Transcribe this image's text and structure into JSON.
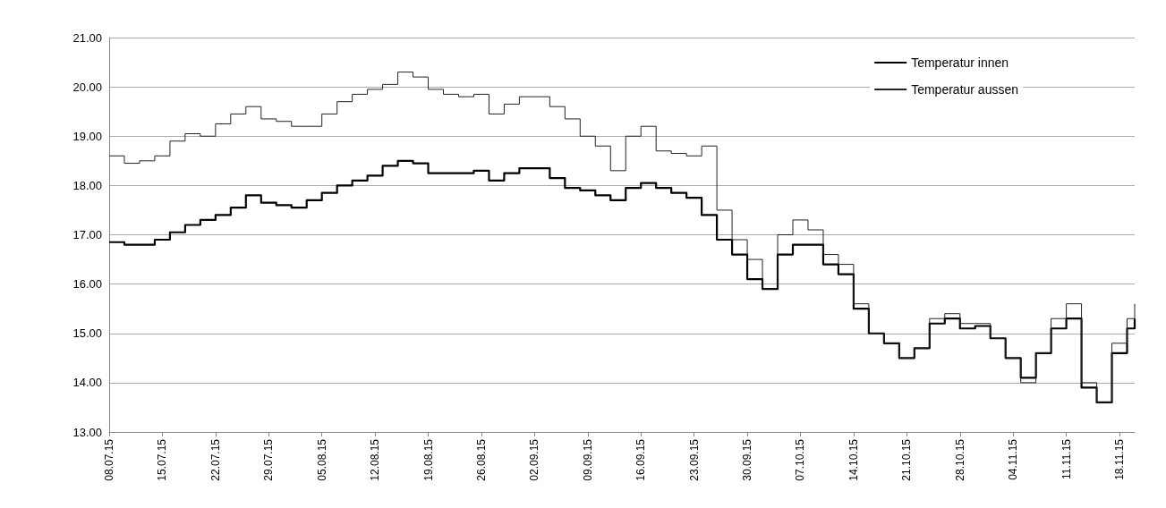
{
  "chart_data": {
    "type": "step",
    "x": [
      "--07-08",
      "--07-10",
      "--07-12",
      "--07-14",
      "--07-16",
      "--07-18",
      "--07-20",
      "--07-22",
      "--07-24",
      "--07-26",
      "--07-28",
      "--07-30",
      "--08-01",
      "--08-03",
      "--08-05",
      "--08-07",
      "--08-09",
      "--08-11",
      "--08-13",
      "--08-15",
      "--08-17",
      "--08-19",
      "--08-21",
      "--08-23",
      "--08-25",
      "--08-27",
      "--08-29",
      "--08-31",
      "--09-02",
      "--09-04",
      "--09-06",
      "--09-08",
      "--09-10",
      "--09-12",
      "--09-14",
      "--09-16",
      "--09-18",
      "--09-20",
      "--09-22",
      "--09-24",
      "--09-26",
      "--09-28",
      "--09-30",
      "--10-02",
      "--10-04",
      "--10-06",
      "--10-08",
      "--10-10",
      "--10-12",
      "--10-14",
      "--10-16",
      "--10-18",
      "--10-20",
      "--10-22",
      "--10-24",
      "--10-26",
      "--10-28",
      "--10-30",
      "--11-01",
      "--11-03",
      "--11-05",
      "--11-07",
      "--11-09",
      "--11-11",
      "--11-13",
      "--11-15",
      "--11-17",
      "--11-19",
      "--11-20"
    ],
    "series": [
      {
        "name": "Temperatur innen",
        "color": "#000000",
        "values": [
          16.85,
          16.8,
          16.8,
          16.9,
          17.05,
          17.2,
          17.3,
          17.4,
          17.55,
          17.8,
          17.65,
          17.6,
          17.55,
          17.7,
          17.85,
          18.0,
          18.1,
          18.2,
          18.4,
          18.5,
          18.45,
          18.25,
          18.25,
          18.25,
          18.3,
          18.1,
          18.25,
          18.35,
          18.35,
          18.15,
          17.95,
          17.9,
          17.8,
          17.7,
          17.95,
          18.05,
          17.95,
          17.85,
          17.75,
          17.4,
          16.9,
          16.6,
          16.1,
          15.9,
          16.6,
          16.8,
          16.8,
          16.4,
          16.2,
          15.5,
          15.0,
          14.8,
          14.5,
          14.7,
          15.2,
          15.3,
          15.1,
          15.15,
          14.9,
          14.5,
          14.1,
          14.6,
          15.1,
          15.3,
          13.9,
          13.6,
          14.6,
          15.1,
          15.3
        ]
      },
      {
        "name": "Temperatur aussen",
        "color": "#222222",
        "values": [
          18.6,
          18.45,
          18.5,
          18.6,
          18.9,
          19.05,
          19.0,
          19.25,
          19.45,
          19.6,
          19.35,
          19.3,
          19.2,
          19.2,
          19.45,
          19.7,
          19.85,
          19.95,
          20.05,
          20.3,
          20.2,
          19.95,
          19.85,
          19.8,
          19.85,
          19.45,
          19.65,
          19.8,
          19.8,
          19.6,
          19.35,
          19.0,
          18.8,
          18.3,
          19.0,
          19.2,
          18.7,
          18.65,
          18.6,
          18.8,
          17.5,
          16.9,
          16.5,
          15.9,
          17.0,
          17.3,
          17.1,
          16.6,
          16.4,
          15.6,
          15.0,
          14.8,
          14.5,
          14.7,
          15.3,
          15.4,
          15.2,
          15.2,
          14.9,
          14.5,
          14.0,
          14.6,
          15.3,
          15.6,
          14.0,
          13.6,
          14.8,
          15.3,
          15.6
        ]
      }
    ],
    "xlim": [
      "--07-08",
      "--11-20"
    ],
    "xticks": [
      {
        "value": "--07-08",
        "label": "08.07.15"
      },
      {
        "value": "--07-15",
        "label": "15.07.15"
      },
      {
        "value": "--07-22",
        "label": "22.07.15"
      },
      {
        "value": "--07-29",
        "label": "29.07.15"
      },
      {
        "value": "--08-05",
        "label": "05.08.15"
      },
      {
        "value": "--08-12",
        "label": "12.08.15"
      },
      {
        "value": "--08-19",
        "label": "19.08.15"
      },
      {
        "value": "--08-26",
        "label": "26.08.15"
      },
      {
        "value": "--09-02",
        "label": "02.09.15"
      },
      {
        "value": "--09-09",
        "label": "09.09.15"
      },
      {
        "value": "--09-16",
        "label": "16.09.15"
      },
      {
        "value": "--09-23",
        "label": "23.09.15"
      },
      {
        "value": "--09-30",
        "label": "30.09.15"
      },
      {
        "value": "--10-07",
        "label": "07.10.15"
      },
      {
        "value": "--10-14",
        "label": "14.10.15"
      },
      {
        "value": "--10-21",
        "label": "21.10.15"
      },
      {
        "value": "--10-28",
        "label": "28.10.15"
      },
      {
        "value": "--11-04",
        "label": "04.11.15"
      },
      {
        "value": "--11-11",
        "label": "11.11.15"
      },
      {
        "value": "--11-18",
        "label": "18.11.15"
      }
    ],
    "ylim": [
      13,
      21
    ],
    "yticks": [
      {
        "value": 13,
        "label": "13.00"
      },
      {
        "value": 14,
        "label": "14.00"
      },
      {
        "value": 15,
        "label": "15.00"
      },
      {
        "value": 16,
        "label": "16.00"
      },
      {
        "value": 17,
        "label": "17.00"
      },
      {
        "value": 18,
        "label": "18.00"
      },
      {
        "value": 19,
        "label": "19.00"
      },
      {
        "value": 20,
        "label": "20.00"
      },
      {
        "value": 21,
        "label": "21.00"
      }
    ],
    "grid": "y",
    "legend": "top right",
    "marker": "none"
  }
}
